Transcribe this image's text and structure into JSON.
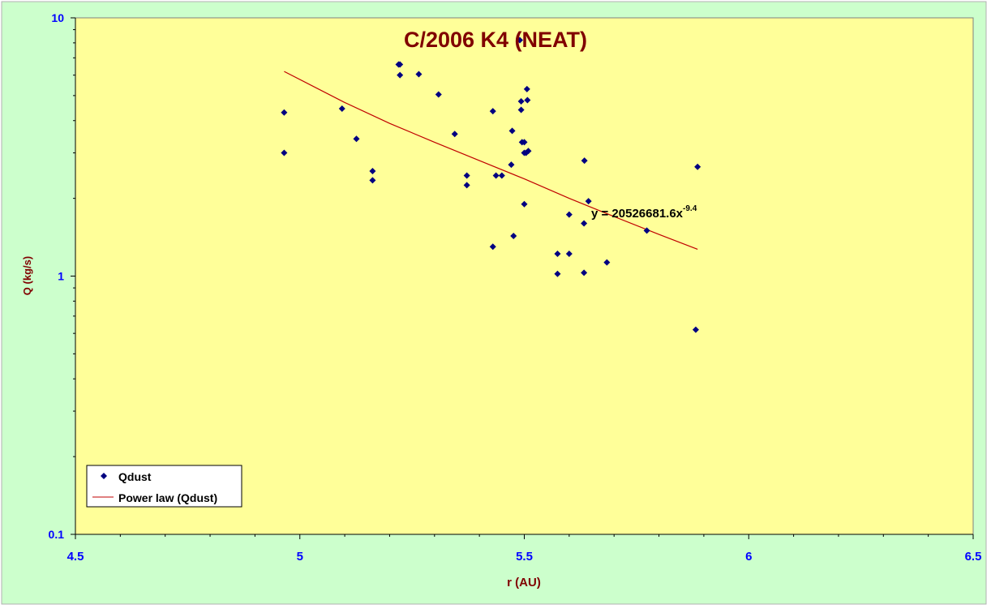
{
  "chart_data": {
    "type": "scatter",
    "title": "C/2006 K4 (NEAT)",
    "xlabel": "r (AU)",
    "ylabel": "Q (kg/s)",
    "xlim": [
      4.5,
      6.5
    ],
    "ylim": [
      0.1,
      10
    ],
    "yscale": "log",
    "xticks": [
      "4.5",
      "5",
      "5.5",
      "6",
      "6.5"
    ],
    "yticks": [
      "0.1",
      "1",
      "10"
    ],
    "grid": false,
    "legend_position": "bottom-left",
    "colors": {
      "outer_background": "#ccffcc",
      "plot_background": "#ffff99",
      "markers": "#000080",
      "trendline": "#c00000",
      "title": "#800000",
      "axis_labels": "#800000",
      "tick_labels": "#0000ff"
    },
    "series": [
      {
        "name": "Qdust",
        "marker": "diamond",
        "x": [
          4.965,
          4.965,
          5.094,
          5.126,
          5.162,
          5.162,
          5.22,
          5.223,
          5.223,
          5.265,
          5.309,
          5.345,
          5.372,
          5.372,
          5.43,
          5.43,
          5.437,
          5.45,
          5.471,
          5.473,
          5.476,
          5.49,
          5.493,
          5.493,
          5.495,
          5.5,
          5.5,
          5.5,
          5.504,
          5.506,
          5.507,
          5.509,
          5.574,
          5.574,
          5.6,
          5.6,
          5.633,
          5.633,
          5.634,
          5.643,
          5.684,
          5.773,
          5.882,
          5.886
        ],
        "y": [
          4.3,
          3.0,
          4.45,
          3.4,
          2.55,
          2.35,
          6.6,
          6.0,
          6.6,
          6.05,
          5.05,
          3.55,
          2.45,
          2.25,
          1.3,
          4.35,
          2.45,
          2.45,
          2.7,
          3.65,
          1.43,
          8.2,
          4.75,
          4.4,
          3.3,
          3.3,
          3.0,
          1.9,
          3.0,
          5.3,
          4.8,
          3.05,
          1.22,
          1.02,
          1.22,
          1.73,
          1.03,
          1.6,
          2.8,
          1.95,
          1.13,
          1.5,
          0.62,
          2.65
        ]
      },
      {
        "name": "Power law (Qdust)",
        "type": "line",
        "x": [
          4.965,
          5.1,
          5.2,
          5.3,
          5.4,
          5.5,
          5.6,
          5.7,
          5.8,
          5.886
        ],
        "y": [
          6.2,
          4.7,
          3.9,
          3.3,
          2.8,
          2.38,
          2.0,
          1.7,
          1.45,
          1.27
        ]
      }
    ],
    "annotations": [
      {
        "text": "y = 20526681.6x",
        "superscript": "-9.4",
        "x": 5.64,
        "y": 1.73
      }
    ]
  }
}
